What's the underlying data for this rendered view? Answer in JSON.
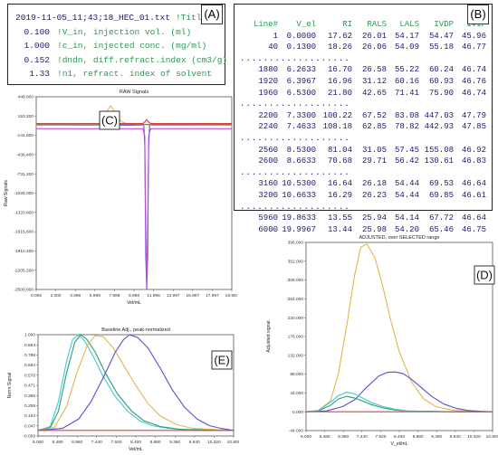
{
  "panel_a": {
    "label": "(A)",
    "lines": [
      {
        "value": "2019-11-05_11;43;18_HEC_01.txt",
        "comment": "!Title"
      },
      {
        "value": "0.100",
        "comment": "!V_in, injection vol. (ml)"
      },
      {
        "value": "1.000",
        "comment": "!c_in, injected conc. (mg/ml)"
      },
      {
        "value": "0.152",
        "comment": "!dndn, diff.refract.index (cm3/g)"
      },
      {
        "value": "1.33",
        "comment": "!n1, refract. index of solvent"
      }
    ]
  },
  "panel_b": {
    "label": "(B)",
    "headers": [
      "Line#",
      "V_el",
      "RI",
      "RALS",
      "LALS",
      "IVDP",
      "IVIP"
    ],
    "separator": "...................",
    "groups": [
      [
        [
          "1",
          "0.0000",
          "17.62",
          "26.01",
          "54.17",
          "54.47",
          "45.96"
        ],
        [
          "40",
          "0.1300",
          "18.26",
          "26.06",
          "54.09",
          "55.18",
          "46.77"
        ]
      ],
      [
        [
          "1880",
          "6.2633",
          "16.70",
          "26.58",
          "55.22",
          "60.24",
          "46.74"
        ],
        [
          "1920",
          "6.3967",
          "16.96",
          "31.12",
          "60.16",
          "60.93",
          "46.76"
        ],
        [
          "1960",
          "6.5300",
          "21.80",
          "42.65",
          "71.41",
          "75.90",
          "46.74"
        ]
      ],
      [
        [
          "2200",
          "7.3300",
          "100.22",
          "67.52",
          "83.08",
          "447.03",
          "47.79"
        ],
        [
          "2240",
          "7.4633",
          "108.18",
          "62.85",
          "78.82",
          "442.93",
          "47.85"
        ]
      ],
      [
        [
          "2560",
          "8.5300",
          "81.04",
          "31.05",
          "57.45",
          "155.08",
          "46.92"
        ],
        [
          "2600",
          "8.6633",
          "70.68",
          "29.71",
          "56.42",
          "130.61",
          "46.83"
        ]
      ],
      [
        [
          "3160",
          "10.5300",
          "16.64",
          "26.18",
          "54.44",
          "69.53",
          "46.64"
        ],
        [
          "3200",
          "10.6633",
          "16.29",
          "26.23",
          "54.44",
          "69.85",
          "46.61"
        ]
      ],
      [
        [
          "5960",
          "19.8633",
          "13.55",
          "25.94",
          "54.14",
          "67.72",
          "46.64"
        ],
        [
          "6000",
          "19.9967",
          "13.44",
          "25.98",
          "54.20",
          "65.46",
          "46.75"
        ]
      ]
    ]
  },
  "chart_data": [
    {
      "id": "C",
      "label": "(C)",
      "type": "line",
      "title": "RAW Signals",
      "xlabel": "Vel/mL",
      "ylabel": "Raw Signals",
      "xlim": [
        0.005,
        19.997
      ],
      "ylim": [
        -2500,
        448
      ],
      "xticks": [
        "0.005",
        "2.000",
        "3.999",
        "5.999",
        "7.998",
        "9.998",
        "11.998",
        "13.997",
        "15.997",
        "17.997",
        "19.997"
      ],
      "yticks": [
        "448.000",
        "153.200",
        "-141.600",
        "-436.400",
        "-731.200",
        "-1026.000",
        "-1320.800",
        "-1615.600",
        "-1910.400",
        "-2205.200",
        "-2500.000"
      ],
      "series": [
        {
          "color": "#5a4fd0",
          "x": [
            0,
            7.3,
            7.5,
            7.6,
            7.7,
            7.8,
            7.9,
            8.1,
            9,
            10,
            11.0,
            11.1,
            11.2,
            11.3,
            11.4,
            11.5,
            11.6,
            12,
            20
          ],
          "y": [
            15,
            15,
            12,
            8,
            5,
            8,
            12,
            15,
            15,
            15,
            15,
            -300,
            -2000,
            -2490,
            -2000,
            -300,
            20,
            15,
            15
          ]
        },
        {
          "color": "#e0b84a",
          "x": [
            0,
            6.5,
            7.0,
            7.3,
            7.6,
            7.9,
            8.3,
            8.8,
            9.5,
            10.5,
            20
          ],
          "y": [
            20,
            22,
            120,
            240,
            310,
            250,
            140,
            60,
            28,
            22,
            20
          ]
        },
        {
          "color": "#e04040",
          "x": [
            0,
            10.9,
            11.1,
            11.3,
            11.5,
            11.7,
            20
          ],
          "y": [
            40,
            40,
            60,
            100,
            60,
            40,
            40
          ]
        },
        {
          "color": "#2aa070",
          "x": [
            0,
            6.9,
            7.3,
            7.6,
            7.9,
            8.5,
            9.5,
            20
          ],
          "y": [
            28,
            30,
            55,
            90,
            45,
            28,
            26,
            26
          ]
        },
        {
          "color": "#c050d0",
          "x": [
            0,
            10.9,
            11.1,
            11.2,
            11.3,
            11.4,
            11.5,
            11.7,
            20
          ],
          "y": [
            -40,
            -40,
            -150,
            -1500,
            -2450,
            -1500,
            -150,
            -40,
            -40
          ]
        }
      ]
    },
    {
      "id": "D",
      "label": "(D)",
      "type": "line",
      "title": "ADJUSTED, over SELECTED range",
      "xlabel": "V_el/mL",
      "ylabel": "Adjusted signal",
      "xlim": [
        6,
        10.6
      ],
      "ylim": [
        -44,
        396
      ],
      "xticks": [
        "6.000",
        "6.480",
        "6.960",
        "7.440",
        "7.920",
        "8.400",
        "8.880",
        "9.360",
        "9.840",
        "10.320",
        "10.800"
      ],
      "yticks": [
        "396.000",
        "352.000",
        "308.000",
        "264.000",
        "220.000",
        "176.000",
        "132.000",
        "88.000",
        "44.000",
        "0.000",
        "-44.000"
      ],
      "series": [
        {
          "color": "#e0b84a",
          "x": [
            6,
            6.3,
            6.6,
            6.8,
            7.0,
            7.2,
            7.35,
            7.5,
            7.7,
            7.9,
            8.1,
            8.3,
            8.6,
            8.9,
            9.2,
            9.6,
            10.0,
            10.6
          ],
          "y": [
            0,
            3,
            25,
            90,
            200,
            320,
            385,
            392,
            360,
            290,
            210,
            140,
            70,
            30,
            12,
            4,
            1,
            0
          ]
        },
        {
          "color": "#5a4fd0",
          "x": [
            6,
            6.5,
            6.9,
            7.2,
            7.5,
            7.8,
            8.0,
            8.2,
            8.4,
            8.6,
            8.8,
            9.1,
            9.4,
            9.7,
            10.0,
            10.3,
            10.6
          ],
          "y": [
            0,
            2,
            12,
            28,
            58,
            84,
            92,
            93,
            89,
            76,
            60,
            36,
            18,
            8,
            3,
            1,
            0
          ]
        },
        {
          "color": "#2aa070",
          "x": [
            6,
            6.3,
            6.6,
            6.8,
            7.0,
            7.2,
            7.4,
            7.6,
            7.9,
            8.2,
            8.5,
            9.0,
            9.6,
            10.6
          ],
          "y": [
            0,
            2,
            15,
            30,
            36,
            32,
            25,
            17,
            9,
            4,
            2,
            1,
            0,
            0
          ]
        },
        {
          "color": "#40c8d8",
          "x": [
            6,
            6.3,
            6.6,
            6.8,
            7.0,
            7.2,
            7.4,
            7.6,
            7.9,
            8.2,
            8.5,
            9.0,
            9.6,
            10.6
          ],
          "y": [
            0,
            3,
            22,
            38,
            46,
            42,
            32,
            22,
            12,
            6,
            2,
            1,
            0,
            0
          ]
        },
        {
          "color": "#e04040",
          "x": [
            6,
            10.6
          ],
          "y": [
            0,
            0
          ]
        }
      ]
    },
    {
      "id": "E",
      "label": "(E)",
      "type": "line",
      "title": "Baseline Adj., peak-normalized",
      "xlabel": "Vel/mL",
      "ylabel": "Norm Signal",
      "xlim": [
        6,
        10.8
      ],
      "ylim": [
        -0.059,
        1
      ],
      "xticks": [
        "6.000",
        "6.480",
        "6.960",
        "7.440",
        "7.920",
        "8.400",
        "8.880",
        "9.360",
        "9.840",
        "10.320",
        "10.800"
      ],
      "yticks": [
        "1.000",
        "0.894",
        "0.788",
        "0.682",
        "0.576",
        "0.471",
        "0.365",
        "0.259",
        "0.153",
        "0.047",
        "-0.059"
      ],
      "series": [
        {
          "color": "#40c8d8",
          "x": [
            6,
            6.3,
            6.5,
            6.7,
            6.85,
            7.0,
            7.15,
            7.35,
            7.6,
            7.9,
            8.2,
            8.5,
            8.8,
            9.2,
            9.8,
            10.8
          ],
          "y": [
            0,
            0.04,
            0.3,
            0.72,
            0.95,
            1.0,
            0.93,
            0.78,
            0.56,
            0.35,
            0.2,
            0.1,
            0.05,
            0.02,
            0,
            0
          ]
        },
        {
          "color": "#2aa070",
          "x": [
            6,
            6.3,
            6.5,
            6.7,
            6.9,
            7.05,
            7.2,
            7.4,
            7.65,
            7.95,
            8.3,
            8.6,
            9.0,
            9.5,
            10.8
          ],
          "y": [
            0,
            0.03,
            0.2,
            0.6,
            0.92,
            1.0,
            0.95,
            0.82,
            0.6,
            0.38,
            0.2,
            0.1,
            0.04,
            0.01,
            0
          ]
        },
        {
          "color": "#e0b84a",
          "x": [
            6,
            6.4,
            6.7,
            6.95,
            7.2,
            7.4,
            7.6,
            7.85,
            8.1,
            8.4,
            8.7,
            9.0,
            9.4,
            9.8,
            10.8
          ],
          "y": [
            0,
            0.03,
            0.25,
            0.6,
            0.88,
            0.99,
            0.98,
            0.86,
            0.68,
            0.47,
            0.28,
            0.15,
            0.06,
            0.02,
            0
          ]
        },
        {
          "color": "#5a4fd0",
          "x": [
            6,
            6.6,
            7.0,
            7.3,
            7.6,
            7.9,
            8.1,
            8.25,
            8.45,
            8.7,
            9.0,
            9.3,
            9.6,
            9.9,
            10.2,
            10.5,
            10.8
          ],
          "y": [
            0,
            0.02,
            0.12,
            0.3,
            0.55,
            0.82,
            0.95,
            1.0,
            0.97,
            0.86,
            0.65,
            0.42,
            0.24,
            0.12,
            0.05,
            0.02,
            0
          ]
        },
        {
          "color": "#e04040",
          "x": [
            6,
            10.8
          ],
          "y": [
            0,
            0
          ]
        }
      ]
    }
  ]
}
